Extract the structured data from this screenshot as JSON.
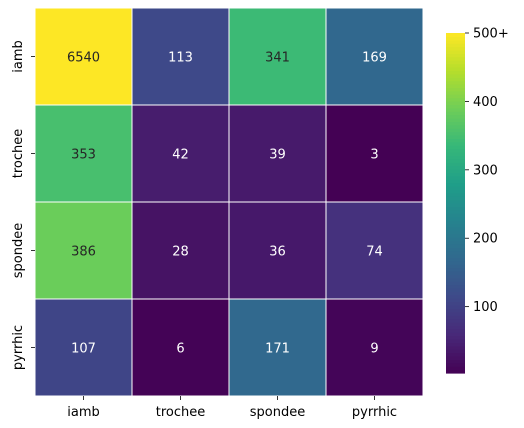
{
  "chart_data": {
    "type": "heatmap",
    "title": "",
    "xlabel": "",
    "ylabel": "",
    "x_categories": [
      "iamb",
      "trochee",
      "spondee",
      "pyrrhic"
    ],
    "y_categories": [
      "iamb",
      "trochee",
      "spondee",
      "pyrrhic"
    ],
    "values": [
      [
        6540,
        113,
        341,
        169
      ],
      [
        353,
        42,
        39,
        3
      ],
      [
        386,
        28,
        36,
        74
      ],
      [
        107,
        6,
        171,
        9
      ]
    ],
    "color_scale": {
      "colormap": "viridis",
      "min": 3,
      "max": 500,
      "clipped_above_max": true
    },
    "colorbar": {
      "position": "right",
      "ticks": [
        100,
        200,
        300,
        400,
        500
      ],
      "tick_labels": [
        "100",
        "200",
        "300",
        "400",
        "500+"
      ]
    },
    "grid": true,
    "grid_color": "#ffffff"
  }
}
